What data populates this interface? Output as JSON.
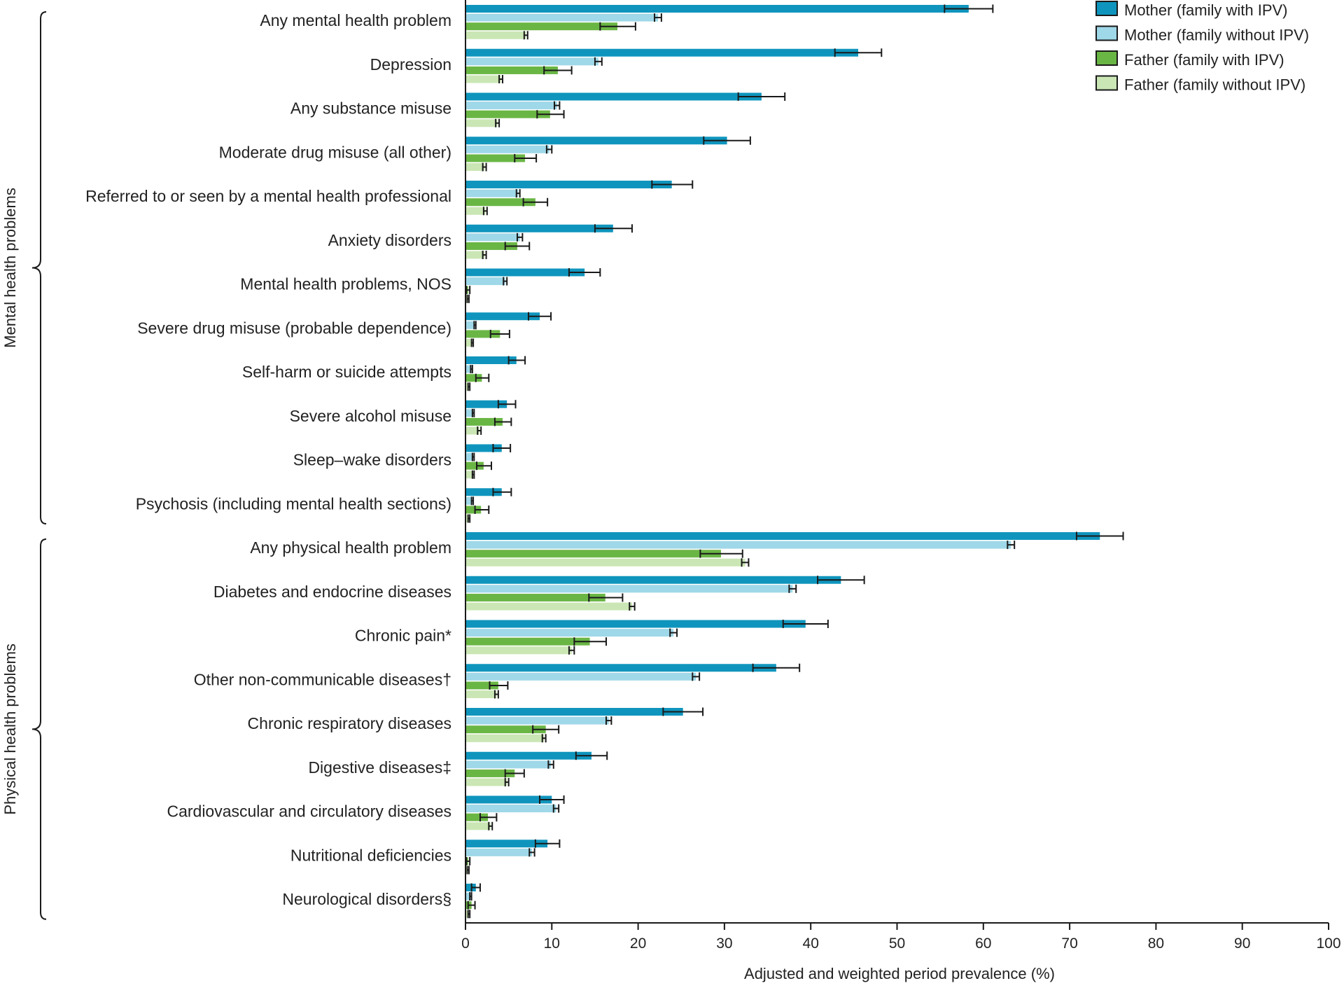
{
  "chart_data": {
    "type": "bar",
    "orientation": "horizontal",
    "title": "",
    "xlabel": "Adjusted and weighted period prevalence (%)",
    "ylabel": "",
    "xlim": [
      0,
      100
    ],
    "xticks": [
      0,
      10,
      20,
      30,
      40,
      50,
      60,
      70,
      80,
      90,
      100
    ],
    "grid": false,
    "legend_position": "top-right",
    "groups": [
      {
        "name": "Mental health problems",
        "categories": [
          "Any mental health problem",
          "Depression",
          "Any substance misuse",
          "Moderate drug misuse (all other)",
          "Referred to or seen by a mental health professional",
          "Anxiety disorders",
          "Mental health problems, NOS",
          "Severe drug misuse (probable dependence)",
          "Self-harm or suicide attempts",
          "Severe alcohol misuse",
          "Sleep–wake disorders",
          "Psychosis (including mental health sections)"
        ]
      },
      {
        "name": "Physical health problems",
        "categories": [
          "Any physical health problem",
          "Diabetes and endocrine diseases",
          "Chronic pain*",
          "Other non-communicable diseases†",
          "Chronic respiratory diseases",
          "Digestive diseases‡",
          "Cardiovascular and circulatory diseases",
          "Nutritional deficiencies",
          "Neurological disorders§"
        ]
      }
    ],
    "categories": [
      "Any mental health problem",
      "Depression",
      "Any substance misuse",
      "Moderate drug misuse (all other)",
      "Referred to or seen by a mental health professional",
      "Anxiety disorders",
      "Mental health problems, NOS",
      "Severe drug misuse (probable dependence)",
      "Self-harm or suicide attempts",
      "Severe alcohol misuse",
      "Sleep–wake disorders",
      "Psychosis (including mental health sections)",
      "Any physical health problem",
      "Diabetes and endocrine diseases",
      "Chronic pain*",
      "Other non-communicable diseases†",
      "Chronic respiratory diseases",
      "Digestive diseases‡",
      "Cardiovascular and circulatory diseases",
      "Nutritional deficiencies",
      "Neurological disorders§"
    ],
    "series": [
      {
        "name": "Mother (family with IPV)",
        "color": "#0f95bd",
        "values": [
          58.3,
          45.5,
          34.3,
          30.3,
          23.9,
          17.1,
          13.8,
          8.6,
          5.9,
          4.8,
          4.2,
          4.2,
          73.5,
          43.5,
          39.4,
          36.0,
          25.2,
          14.6,
          10.0,
          9.5,
          1.2
        ],
        "ci_low": [
          55.5,
          42.8,
          31.6,
          27.6,
          21.6,
          15.0,
          12.0,
          7.3,
          5.0,
          3.8,
          3.2,
          3.2,
          70.8,
          40.8,
          36.8,
          33.3,
          22.9,
          12.8,
          8.6,
          8.1,
          0.7
        ],
        "ci_high": [
          61.1,
          48.2,
          37.0,
          33.0,
          26.3,
          19.3,
          15.6,
          9.9,
          6.9,
          5.8,
          5.2,
          5.3,
          76.2,
          46.2,
          42.0,
          38.7,
          27.5,
          16.4,
          11.4,
          10.9,
          1.7
        ]
      },
      {
        "name": "Mother (family without IPV)",
        "color": "#9fd8e8",
        "values": [
          22.3,
          15.4,
          10.6,
          9.7,
          6.1,
          6.3,
          4.6,
          1.1,
          0.7,
          0.9,
          0.9,
          0.8,
          63.2,
          37.9,
          24.1,
          26.7,
          16.6,
          9.9,
          10.5,
          7.7,
          0.6
        ],
        "ci_low": [
          21.9,
          15.0,
          10.3,
          9.4,
          5.9,
          6.0,
          4.4,
          1.0,
          0.6,
          0.8,
          0.8,
          0.7,
          62.8,
          37.5,
          23.7,
          26.3,
          16.3,
          9.6,
          10.2,
          7.4,
          0.5
        ],
        "ci_high": [
          22.7,
          15.8,
          10.9,
          10.0,
          6.3,
          6.6,
          4.8,
          1.2,
          0.8,
          1.0,
          1.0,
          0.9,
          63.6,
          38.3,
          24.5,
          27.1,
          16.9,
          10.2,
          10.8,
          8.0,
          0.7
        ]
      },
      {
        "name": "Father (family with IPV)",
        "color": "#6ab645",
        "values": [
          17.6,
          10.7,
          9.8,
          6.9,
          8.1,
          6.0,
          0.3,
          4.0,
          1.9,
          4.3,
          2.1,
          1.8,
          29.6,
          16.2,
          14.4,
          3.8,
          9.3,
          5.7,
          2.6,
          0.3,
          0.7
        ],
        "ci_low": [
          15.6,
          9.1,
          8.3,
          5.7,
          6.7,
          4.6,
          0.1,
          2.9,
          1.2,
          3.4,
          1.3,
          1.1,
          27.2,
          14.3,
          12.6,
          2.8,
          7.8,
          4.6,
          1.7,
          0.1,
          0.3
        ],
        "ci_high": [
          19.7,
          12.3,
          11.4,
          8.2,
          9.5,
          7.4,
          0.5,
          5.1,
          2.7,
          5.3,
          3.0,
          2.7,
          32.1,
          18.2,
          16.3,
          4.9,
          10.8,
          6.8,
          3.6,
          0.5,
          1.1
        ]
      },
      {
        "name": "Father (family without IPV)",
        "color": "#cae6b4",
        "values": [
          7.0,
          4.1,
          3.7,
          2.2,
          2.3,
          2.2,
          0.3,
          0.8,
          0.4,
          1.6,
          0.9,
          0.4,
          32.4,
          19.3,
          12.3,
          3.6,
          9.1,
          4.8,
          2.9,
          0.3,
          0.4
        ],
        "ci_low": [
          6.8,
          3.9,
          3.5,
          2.0,
          2.1,
          2.0,
          0.2,
          0.7,
          0.3,
          1.4,
          0.8,
          0.3,
          32.0,
          19.0,
          12.0,
          3.4,
          8.9,
          4.6,
          2.7,
          0.2,
          0.3
        ],
        "ci_high": [
          7.2,
          4.3,
          3.9,
          2.4,
          2.5,
          2.4,
          0.4,
          0.9,
          0.5,
          1.8,
          1.0,
          0.5,
          32.8,
          19.6,
          12.6,
          3.8,
          9.3,
          5.0,
          3.1,
          0.4,
          0.5
        ]
      }
    ]
  }
}
